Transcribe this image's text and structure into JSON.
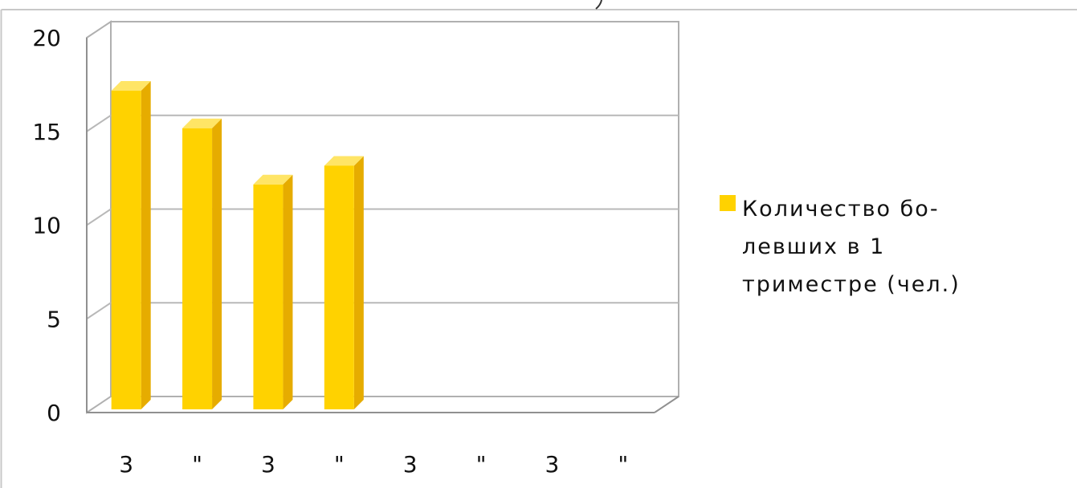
{
  "colors": {
    "bar_front": "#FFD200",
    "bar_side": "#E6AC00",
    "bar_top": "#FFE566",
    "frame": "#B0B0B0",
    "grid": "#B8B8B8",
    "axis": "#909090"
  },
  "chart_data": {
    "type": "bar",
    "categories": [
      "3",
      "\"",
      "3",
      "\"",
      "3",
      "\"",
      "3",
      "\""
    ],
    "series": [
      {
        "name": "Количество болевших в 1 триместре (чел.)",
        "values": [
          17,
          15,
          12,
          13,
          null,
          null,
          null,
          null
        ]
      }
    ],
    "yticks": [
      "0",
      "5",
      "10",
      "15",
      "20"
    ],
    "ylim": [
      0,
      20
    ],
    "grid": true,
    "legend": "right",
    "xlabel": "",
    "ylabel": "",
    "title": ""
  },
  "legend": {
    "label_lines": [
      "Количество бо-",
      "левших в 1",
      "триместре (чел.)"
    ]
  }
}
